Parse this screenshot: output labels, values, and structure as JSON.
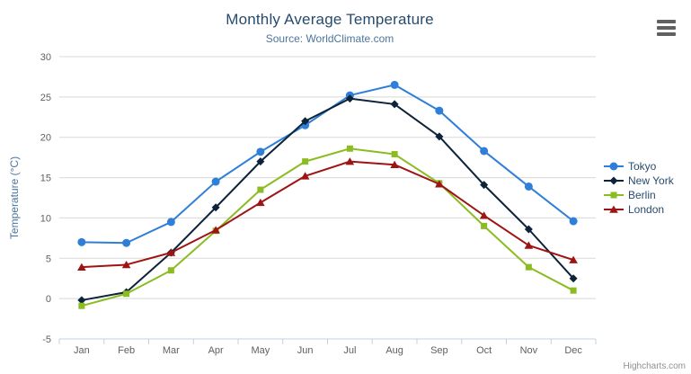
{
  "header": {
    "title": "Monthly Average Temperature",
    "subtitle": "Source: WorldClimate.com"
  },
  "credits": {
    "label": "Highcharts.com"
  },
  "colors": {
    "title": "#274b6d",
    "subtitle": "#4d759e",
    "axis_label": "#606060",
    "axis_line": "#c0d0e0",
    "gridline": "#d8d8d8",
    "legend_text": "#274b6d",
    "menu_icon": "#616161"
  },
  "chart_data": {
    "type": "line",
    "title": "Monthly Average Temperature",
    "subtitle": "Source: WorldClimate.com",
    "categories": [
      "Jan",
      "Feb",
      "Mar",
      "Apr",
      "May",
      "Jun",
      "Jul",
      "Aug",
      "Sep",
      "Oct",
      "Nov",
      "Dec"
    ],
    "series": [
      {
        "name": "Tokyo",
        "color": "#2f7ed8",
        "marker": "circle",
        "values": [
          7.0,
          6.9,
          9.5,
          14.5,
          18.2,
          21.5,
          25.2,
          26.5,
          23.3,
          18.3,
          13.9,
          9.6
        ]
      },
      {
        "name": "New York",
        "color": "#0d233a",
        "marker": "diamond",
        "values": [
          -0.2,
          0.8,
          5.7,
          11.3,
          17.0,
          22.0,
          24.8,
          24.1,
          20.1,
          14.1,
          8.6,
          2.5
        ]
      },
      {
        "name": "Berlin",
        "color": "#8bbc21",
        "marker": "square",
        "values": [
          -0.9,
          0.6,
          3.5,
          8.4,
          13.5,
          17.0,
          18.6,
          17.9,
          14.3,
          9.0,
          3.9,
          1.0
        ]
      },
      {
        "name": "London",
        "color": "#9e1414",
        "marker": "triangle",
        "values": [
          3.9,
          4.2,
          5.7,
          8.5,
          11.9,
          15.2,
          17.0,
          16.6,
          14.2,
          10.3,
          6.6,
          4.8
        ]
      }
    ],
    "xlabel": "",
    "ylabel": "Temperature (°C)",
    "ylim": [
      -5,
      30
    ],
    "ytick_step": 5,
    "grid": true,
    "legend_position": "right"
  }
}
